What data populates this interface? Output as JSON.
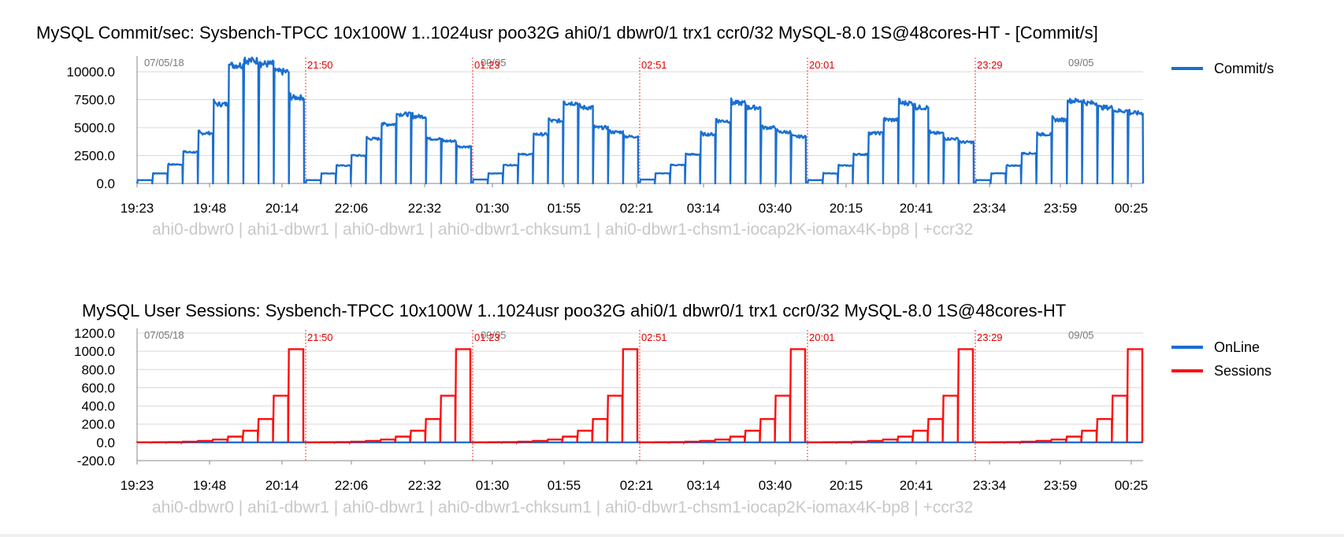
{
  "chart_data": [
    {
      "id": "commits",
      "type": "line",
      "title": "MySQL Commit/sec: Sysbench-TPCC 10x100W 1..1024usr poo32G ahi0/1 dbwr0/1 trx1 ccr0/32 MySQL-8.0 1S@48cores-HT - [Commit/s]",
      "ylim": [
        0,
        11000
      ],
      "yticks": [
        "0.0",
        "2500.0",
        "5000.0",
        "7500.0",
        "10000.0"
      ],
      "ytick_values": [
        0,
        2500,
        5000,
        7500,
        10000
      ],
      "xticks": [
        "19:23",
        "19:48",
        "20:14",
        "22:06",
        "22:32",
        "01:30",
        "01:55",
        "02:21",
        "03:14",
        "03:40",
        "20:15",
        "20:41",
        "23:34",
        "23:59",
        "00:25"
      ],
      "date_labels": [
        "07/05/18",
        "09/05",
        "09/05"
      ],
      "markers": [
        "21:50",
        "01:23",
        "02:51",
        "20:01",
        "23:29"
      ],
      "runs_label": "ahi0-dbwr0 | ahi1-dbwr1 | ahi0-dbwr1 | ahi0-dbwr1-chksum1 | ahi0-dbwr1-chsm1-iocap2K-iomax4K-bp8 | +ccr32",
      "series": [
        {
          "name": "Commit/s",
          "color": "#1a6fd0",
          "runs": [
            {
              "levels": [
                300,
                900,
                1700,
                2800,
                4500,
                7100,
                10600,
                11000,
                10700,
                10000,
                7700
              ]
            },
            {
              "levels": [
                300,
                900,
                1600,
                2500,
                4000,
                5300,
                6200,
                6000,
                4000,
                3800,
                3300
              ]
            },
            {
              "levels": [
                350,
                900,
                1650,
                2600,
                4400,
                5600,
                7200,
                6800,
                5000,
                4600,
                4200
              ]
            },
            {
              "levels": [
                350,
                900,
                1650,
                2600,
                4400,
                5600,
                7200,
                6800,
                5000,
                4600,
                4200
              ]
            },
            {
              "levels": [
                300,
                900,
                1600,
                2600,
                4500,
                5700,
                7200,
                6800,
                4500,
                4000,
                3700
              ]
            },
            {
              "levels": [
                300,
                900,
                1600,
                2700,
                4400,
                5700,
                7400,
                7200,
                6800,
                6500,
                6300
              ]
            }
          ]
        }
      ]
    },
    {
      "id": "sessions",
      "type": "line",
      "title": "MySQL User Sessions: Sysbench-TPCC 10x100W 1..1024usr poo32G ahi0/1 dbwr0/1 trx1 ccr0/32 MySQL-8.0 1S@48cores-HT",
      "ylim": [
        -200,
        1200
      ],
      "yticks": [
        "-200.0",
        "0.0",
        "200.0",
        "400.0",
        "600.0",
        "800.0",
        "1000.0",
        "1200.0"
      ],
      "ytick_values": [
        -200,
        0,
        200,
        400,
        600,
        800,
        1000,
        1200
      ],
      "xticks": [
        "19:23",
        "19:48",
        "20:14",
        "22:06",
        "22:32",
        "01:30",
        "01:55",
        "02:21",
        "03:14",
        "03:40",
        "20:15",
        "20:41",
        "23:34",
        "23:59",
        "00:25"
      ],
      "date_labels": [
        "07/05/18",
        "09/05",
        "09/05"
      ],
      "markers": [
        "21:50",
        "01:23",
        "02:51",
        "20:01",
        "23:29"
      ],
      "runs_label": "ahi0-dbwr0 | ahi1-dbwr1 | ahi0-dbwr1 | ahi0-dbwr1-chksum1 | ahi0-dbwr1-chsm1-iocap2K-iomax4K-bp8 | +ccr32",
      "series": [
        {
          "name": "OnLine",
          "color": "#1a6fd0",
          "levels": [
            0
          ]
        },
        {
          "name": "Sessions",
          "color": "#ff0d0d",
          "levels": [
            1,
            2,
            4,
            8,
            16,
            32,
            64,
            128,
            256,
            512,
            1024
          ]
        }
      ]
    }
  ]
}
